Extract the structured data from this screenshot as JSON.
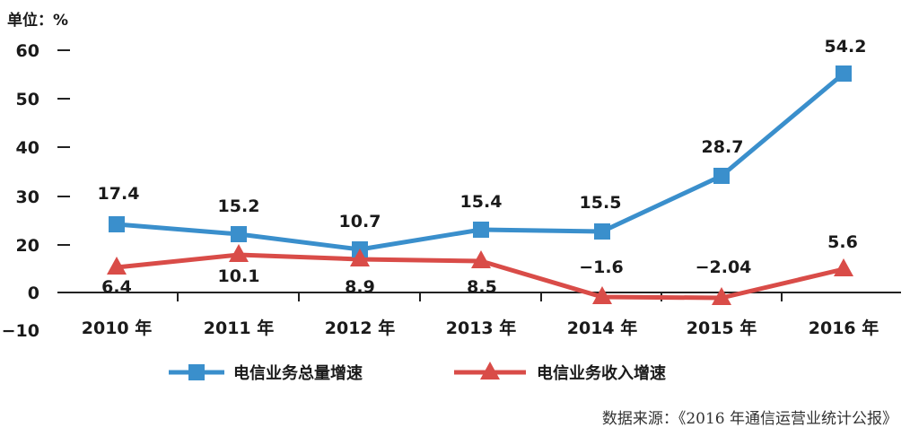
{
  "chart_data": {
    "type": "line",
    "unit_label": "单位：%",
    "categories": [
      "2010 年",
      "2011 年",
      "2012 年",
      "2013 年",
      "2014 年",
      "2015 年",
      "2016 年"
    ],
    "y_ticks": [
      "60",
      "50",
      "40",
      "30",
      "20",
      "0",
      "−10"
    ],
    "y_tick_values": [
      60,
      50,
      40,
      30,
      20,
      0,
      -10
    ],
    "series": [
      {
        "name": "电信业务总量增速",
        "values": [
          17.4,
          15.2,
          10.7,
          15.4,
          15.5,
          28.7,
          54.2
        ],
        "labels": [
          "17.4",
          "15.2",
          "10.7",
          "15.4",
          "15.5",
          "28.7",
          "54.2"
        ],
        "marker": "square",
        "color": "#3a8fcc"
      },
      {
        "name": "电信业务收入增速",
        "values": [
          6.4,
          10.1,
          8.9,
          8.5,
          -1.6,
          -2.04,
          5.6
        ],
        "labels": [
          "6.4",
          "10.1",
          "8.9",
          "8.5",
          "−1.6",
          "−2.04",
          "5.6"
        ],
        "marker": "triangle",
        "color": "#d94c48"
      }
    ],
    "source": "数据来源：《2016 年通信运营业统计公报》"
  }
}
